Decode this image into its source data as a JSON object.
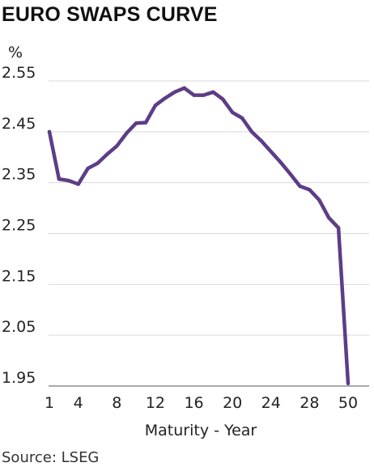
{
  "chart_data": {
    "type": "line",
    "title": "EURO SWAPS CURVE",
    "unit": "%",
    "xlabel": "Maturity - Year",
    "ylabel": "",
    "source": "Source: LSEG",
    "ylim": [
      1.95,
      2.55
    ],
    "yticks": [
      1.95,
      2.05,
      2.15,
      2.25,
      2.35,
      2.45,
      2.55
    ],
    "ytick_labels": [
      "1.95",
      "2.05",
      "2.15",
      "2.25",
      "2.35",
      "2.45",
      "2.55"
    ],
    "xticks": [
      {
        "index": 0,
        "label": "1"
      },
      {
        "index": 3,
        "label": "4"
      },
      {
        "index": 7,
        "label": "8"
      },
      {
        "index": 11,
        "label": "12"
      },
      {
        "index": 15,
        "label": "16"
      },
      {
        "index": 19,
        "label": "20"
      },
      {
        "index": 23,
        "label": "24"
      },
      {
        "index": 27,
        "label": "28"
      },
      {
        "index": 31,
        "label": "50"
      }
    ],
    "x_index_range": [
      0,
      31
    ],
    "grid": "horizontal",
    "line_color": "#5c3d86",
    "series": [
      {
        "x": [
          "1",
          "2",
          "3",
          "4",
          "5",
          "6",
          "7",
          "8",
          "9",
          "10",
          "11",
          "12",
          "13",
          "14",
          "15",
          "16",
          "17",
          "18",
          "19",
          "20",
          "21",
          "22",
          "23",
          "24",
          "25",
          "26",
          "27",
          "28",
          "29",
          "30",
          "40",
          "50"
        ],
        "values": [
          2.45,
          2.357,
          2.354,
          2.347,
          2.378,
          2.388,
          2.406,
          2.422,
          2.447,
          2.467,
          2.468,
          2.502,
          2.516,
          2.528,
          2.536,
          2.522,
          2.522,
          2.528,
          2.514,
          2.488,
          2.477,
          2.45,
          2.432,
          2.411,
          2.39,
          2.367,
          2.343,
          2.336,
          2.316,
          2.281,
          2.261,
          1.955
        ]
      }
    ]
  }
}
